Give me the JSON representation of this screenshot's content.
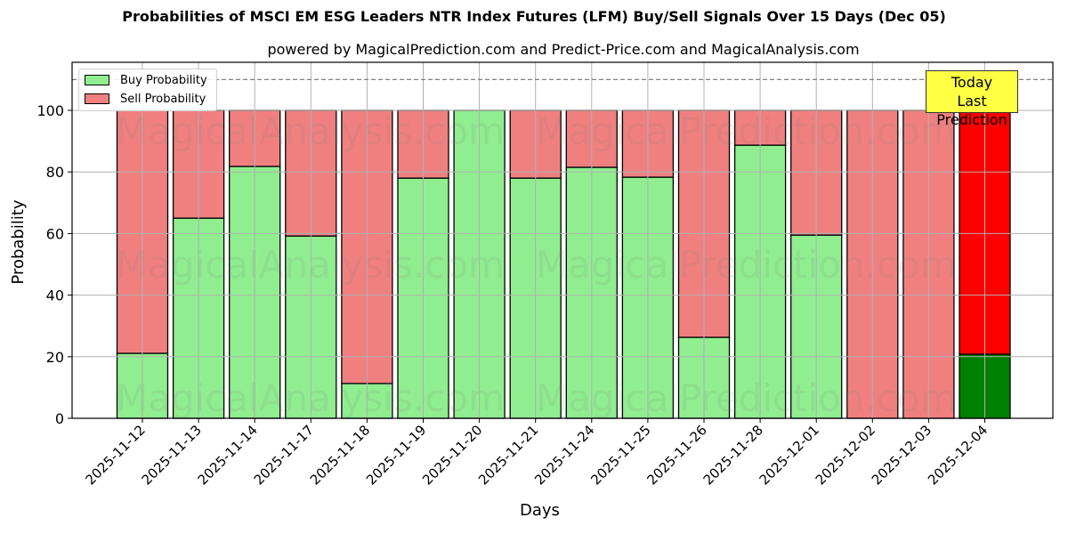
{
  "header": {
    "title": "Probabilities of MSCI EM ESG Leaders NTR Index Futures (LFM) Buy/Sell Signals Over 15 Days (Dec 05)",
    "subtitle": "powered by MagicalPrediction.com and Predict-Price.com and MagicalAnalysis.com"
  },
  "legend": {
    "buy_label": "Buy Probability",
    "sell_label": "Sell Probability"
  },
  "annotation": {
    "line1": "Today",
    "line2": "Last Prediction"
  },
  "axes": {
    "xlabel": "Days",
    "ylabel": "Probability",
    "yticks": [
      "0",
      "20",
      "40",
      "60",
      "80",
      "100"
    ]
  },
  "watermarks": [
    "MagicalAnalysis.com",
    "MagicalPrediction.com"
  ],
  "colors": {
    "buy": "#90ee90",
    "sell": "#f08080",
    "buy_today": "#008000",
    "sell_today": "#ff0000",
    "annotation_bg": "#ffff44"
  },
  "chart_data": {
    "type": "bar",
    "stacked": true,
    "title": "Probabilities of MSCI EM ESG Leaders NTR Index Futures (LFM) Buy/Sell Signals Over 15 Days (Dec 05)",
    "subtitle": "powered by MagicalPrediction.com and Predict-Price.com and MagicalAnalysis.com",
    "xlabel": "Days",
    "ylabel": "Probability",
    "ylim": [
      0,
      115
    ],
    "yticks": [
      0,
      20,
      40,
      60,
      80,
      100
    ],
    "reference_line": 110,
    "grid": true,
    "legend_position": "upper left",
    "categories": [
      "2025-11-12",
      "2025-11-13",
      "2025-11-14",
      "2025-11-17",
      "2025-11-18",
      "2025-11-19",
      "2025-11-20",
      "2025-11-21",
      "2025-11-24",
      "2025-11-25",
      "2025-11-26",
      "2025-11-28",
      "2025-12-01",
      "2025-12-02",
      "2025-12-03",
      "2025-12-04"
    ],
    "series": [
      {
        "name": "Buy Probability",
        "values": [
          21.1,
          65.0,
          81.8,
          59.2,
          11.3,
          78.0,
          100.0,
          78.0,
          81.5,
          78.3,
          26.3,
          88.7,
          59.5,
          0.0,
          0.0,
          20.8
        ]
      },
      {
        "name": "Sell Probability",
        "values": [
          78.9,
          35.0,
          18.2,
          40.8,
          88.7,
          22.0,
          0.0,
          22.0,
          18.5,
          21.7,
          73.7,
          11.3,
          40.5,
          100.0,
          100.0,
          79.2
        ]
      }
    ],
    "annotations": [
      {
        "text": "Today\nLast Prediction",
        "x": "2025-12-04"
      }
    ]
  }
}
